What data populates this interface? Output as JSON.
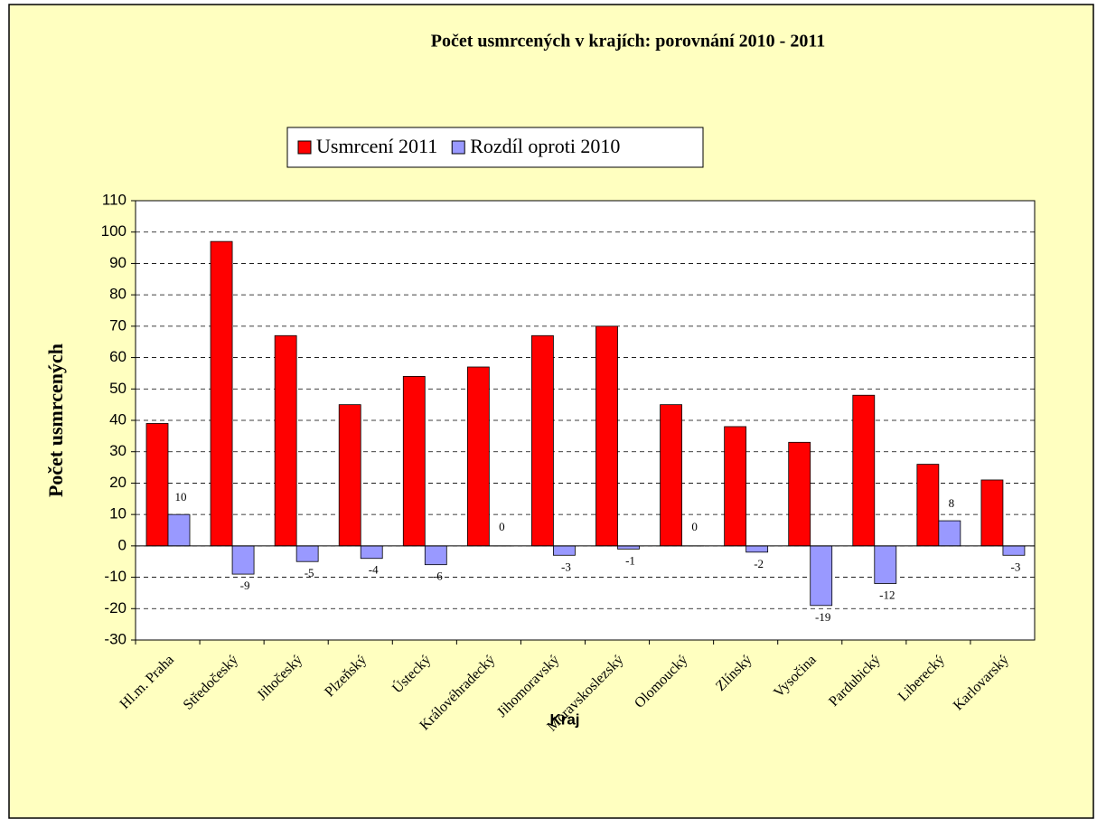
{
  "chart_data": {
    "type": "bar",
    "title": "Počet usmrcených v krajích: porovnání 2010 - 2011",
    "x_label": "Kraj",
    "y_label": "Počet usmrcených",
    "categories": [
      "Hl.m. Praha",
      "Středočeský",
      "Jihočeský",
      "Plzeňský",
      "Ústecký",
      "Královéhradecký",
      "Jihomoravský",
      "Moravskoslezský",
      "Olomoucký",
      "Zlínský",
      "Vysočina",
      "Pardubický",
      "Liberecký",
      "Karlovarský"
    ],
    "series": [
      {
        "name": "Usmrcení 2011",
        "color": "#ff0000",
        "values": [
          39,
          97,
          67,
          45,
          54,
          57,
          67,
          70,
          45,
          38,
          33,
          48,
          26,
          21
        ]
      },
      {
        "name": "Rozdíl oproti 2010",
        "color": "#9999ff",
        "values": [
          10,
          -9,
          -5,
          -4,
          -6,
          0,
          -3,
          -1,
          0,
          -2,
          -19,
          -12,
          8,
          -3
        ],
        "data_labels": true
      }
    ],
    "ylim": [
      -30,
      110
    ],
    "yticks": [
      -30,
      -20,
      -10,
      0,
      10,
      20,
      30,
      40,
      50,
      60,
      70,
      80,
      90,
      100,
      110
    ],
    "grid": true,
    "legend": "top"
  }
}
